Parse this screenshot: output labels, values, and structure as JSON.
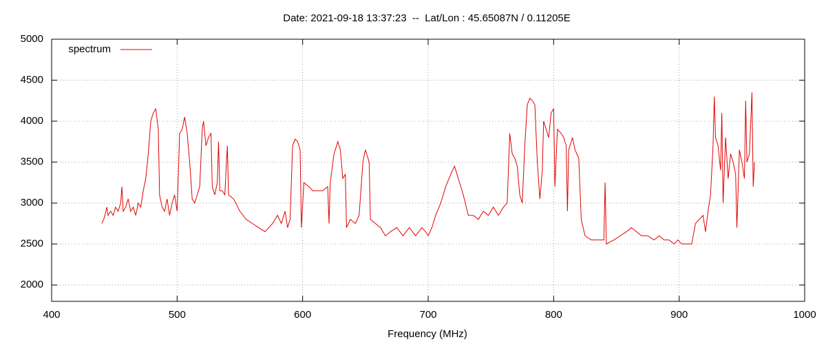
{
  "chart_data": {
    "type": "line",
    "title": "Date: 2021-09-18 13:37:23  --  Lat/Lon : 45.65087N / 0.11205E",
    "x_label": "Frequency (MHz)",
    "xlim": [
      400,
      1000
    ],
    "xticks": [
      400,
      500,
      600,
      700,
      800,
      900,
      1000
    ],
    "ylim": [
      1800,
      5000
    ],
    "yticks": [
      2000,
      2500,
      3000,
      3500,
      4000,
      4500,
      5000
    ],
    "grid": true,
    "legend": "top-left",
    "x": [
      440,
      442,
      444,
      445,
      447,
      449,
      451,
      453,
      455,
      456,
      457,
      459,
      461,
      463,
      465,
      467,
      469,
      471,
      473,
      475,
      477,
      479,
      481,
      483,
      485,
      486,
      488,
      490,
      492,
      494,
      496,
      498,
      500,
      502,
      504,
      506,
      508,
      510,
      512,
      514,
      516,
      518,
      520,
      521,
      523,
      525,
      527,
      528,
      530,
      532,
      533,
      534,
      536,
      538,
      540,
      541,
      545,
      550,
      555,
      560,
      565,
      570,
      573,
      576,
      580,
      583,
      586,
      588,
      590,
      592,
      594,
      596,
      598,
      599,
      601,
      605,
      608,
      612,
      616,
      620,
      621,
      622,
      625,
      628,
      630,
      632,
      634,
      635,
      638,
      642,
      645,
      648,
      650,
      653,
      654,
      658,
      662,
      666,
      670,
      675,
      680,
      685,
      690,
      695,
      698,
      700,
      703,
      706,
      710,
      714,
      718,
      721,
      724,
      728,
      732,
      736,
      740,
      744,
      748,
      752,
      756,
      760,
      763,
      765,
      767,
      769,
      771,
      773,
      775,
      777,
      779,
      781,
      783,
      785,
      787,
      789,
      791,
      792,
      794,
      796,
      798,
      800,
      801,
      803,
      806,
      808,
      810,
      811,
      812,
      815,
      817,
      820,
      822,
      825,
      830,
      835,
      840,
      841,
      842,
      848,
      853,
      858,
      862,
      866,
      870,
      875,
      880,
      884,
      888,
      892,
      896,
      899,
      902,
      906,
      910,
      913,
      916,
      919,
      921,
      923,
      925,
      927,
      928,
      929,
      931,
      933,
      934,
      935,
      937,
      939,
      941,
      943,
      945,
      946,
      948,
      950,
      952,
      953,
      954,
      956,
      958,
      959,
      960
    ],
    "series": [
      {
        "name": "spectrum",
        "color": "#e00000",
        "values": [
          2750,
          2820,
          2950,
          2850,
          2900,
          2850,
          2950,
          2900,
          3000,
          3200,
          2900,
          2950,
          3050,
          2900,
          2950,
          2850,
          3000,
          2950,
          3150,
          3300,
          3600,
          4000,
          4100,
          4150,
          3900,
          3100,
          2950,
          2900,
          3050,
          2850,
          3000,
          3100,
          2900,
          3850,
          3900,
          4050,
          3850,
          3500,
          3050,
          3000,
          3100,
          3200,
          3900,
          4000,
          3700,
          3800,
          3850,
          3200,
          3100,
          3250,
          3750,
          3150,
          3150,
          3100,
          3700,
          3100,
          3050,
          2900,
          2800,
          2750,
          2700,
          2650,
          2700,
          2750,
          2850,
          2750,
          2900,
          2700,
          2800,
          3700,
          3780,
          3750,
          3650,
          2700,
          3250,
          3200,
          3150,
          3150,
          3150,
          3200,
          2750,
          3250,
          3600,
          3750,
          3650,
          3300,
          3350,
          2700,
          2800,
          2750,
          2850,
          3500,
          3650,
          3500,
          2800,
          2750,
          2700,
          2600,
          2650,
          2700,
          2600,
          2700,
          2600,
          2700,
          2650,
          2600,
          2700,
          2850,
          3000,
          3200,
          3350,
          3450,
          3300,
          3100,
          2850,
          2850,
          2800,
          2900,
          2850,
          2950,
          2850,
          2950,
          3000,
          3850,
          3600,
          3550,
          3450,
          3100,
          3000,
          3700,
          4200,
          4280,
          4250,
          4200,
          3500,
          3050,
          3400,
          4000,
          3900,
          3800,
          4100,
          4150,
          3200,
          3900,
          3850,
          3800,
          3700,
          2900,
          3650,
          3800,
          3650,
          3550,
          2800,
          2600,
          2550,
          2550,
          2550,
          3250,
          2500,
          2550,
          2600,
          2650,
          2700,
          2650,
          2600,
          2600,
          2550,
          2600,
          2550,
          2550,
          2500,
          2550,
          2500,
          2500,
          2500,
          2750,
          2800,
          2850,
          2650,
          2900,
          3100,
          3700,
          4300,
          3800,
          3700,
          3400,
          4100,
          3000,
          3800,
          3300,
          3600,
          3500,
          3350,
          2700,
          3650,
          3500,
          3300,
          4250,
          3500,
          3600,
          4350,
          3200,
          3500
        ]
      }
    ]
  }
}
